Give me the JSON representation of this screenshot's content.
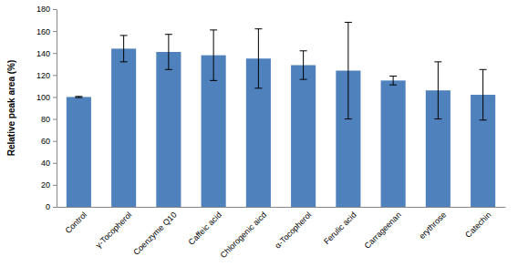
{
  "chart_data": {
    "type": "bar",
    "y_label": "Relative peak area (%)",
    "categories": [
      "Control",
      "γ-Tocopherol",
      "Coenzyme Q10",
      "Caffeic acid",
      "Chlorogenic aicd",
      "α-Tocopherol",
      "Ferulic acid",
      "Carrageenan",
      "erythrose",
      "Catechin"
    ],
    "values": [
      100,
      144,
      141,
      138,
      135,
      129,
      124,
      115,
      106,
      102
    ],
    "errors": [
      0.5,
      12,
      16,
      23,
      27,
      13,
      44,
      4,
      26,
      23
    ],
    "color": "#4f81bd",
    "ylim": [
      0,
      180
    ],
    "yticks": [
      0,
      20,
      40,
      60,
      80,
      100,
      120,
      140,
      160,
      180
    ],
    "grid": false
  }
}
